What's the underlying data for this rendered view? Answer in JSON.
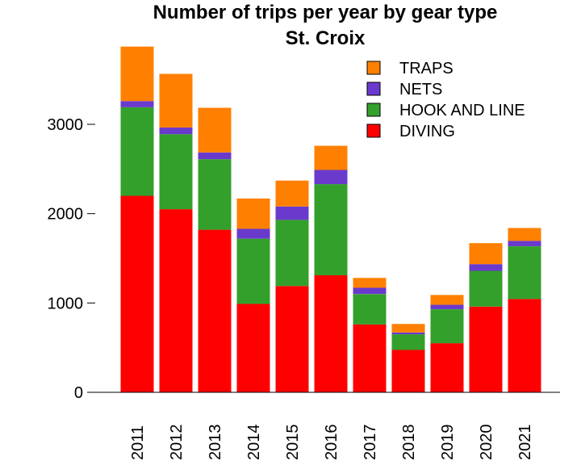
{
  "chart_data": {
    "type": "bar",
    "stacked": true,
    "title": "Number of trips per year by gear type",
    "subtitle": "St. Croix",
    "xlabel": "",
    "ylabel": "",
    "categories": [
      "2011",
      "2012",
      "2013",
      "2014",
      "2015",
      "2016",
      "2017",
      "2018",
      "2019",
      "2020",
      "2021"
    ],
    "ylim": [
      0,
      3900
    ],
    "yticks": [
      0,
      1000,
      2000,
      3000
    ],
    "grid": false,
    "legend_position": "top-right",
    "series": [
      {
        "name": "DIVING",
        "color": "#ff0000",
        "values": [
          2200,
          2050,
          1820,
          990,
          1190,
          1310,
          760,
          475,
          550,
          960,
          1045
        ]
      },
      {
        "name": "HOOK AND LINE",
        "color": "#33a02c",
        "values": [
          990,
          840,
          790,
          730,
          740,
          1020,
          340,
          175,
          380,
          400,
          590
        ]
      },
      {
        "name": "NETS",
        "color": "#6a3acd",
        "values": [
          70,
          75,
          75,
          110,
          150,
          160,
          70,
          20,
          50,
          75,
          60
        ]
      },
      {
        "name": "TRAPS",
        "color": "#ff8000",
        "values": [
          610,
          600,
          500,
          340,
          290,
          270,
          110,
          95,
          110,
          235,
          145
        ]
      }
    ],
    "legend_order": [
      "TRAPS",
      "NETS",
      "HOOK AND LINE",
      "DIVING"
    ]
  }
}
